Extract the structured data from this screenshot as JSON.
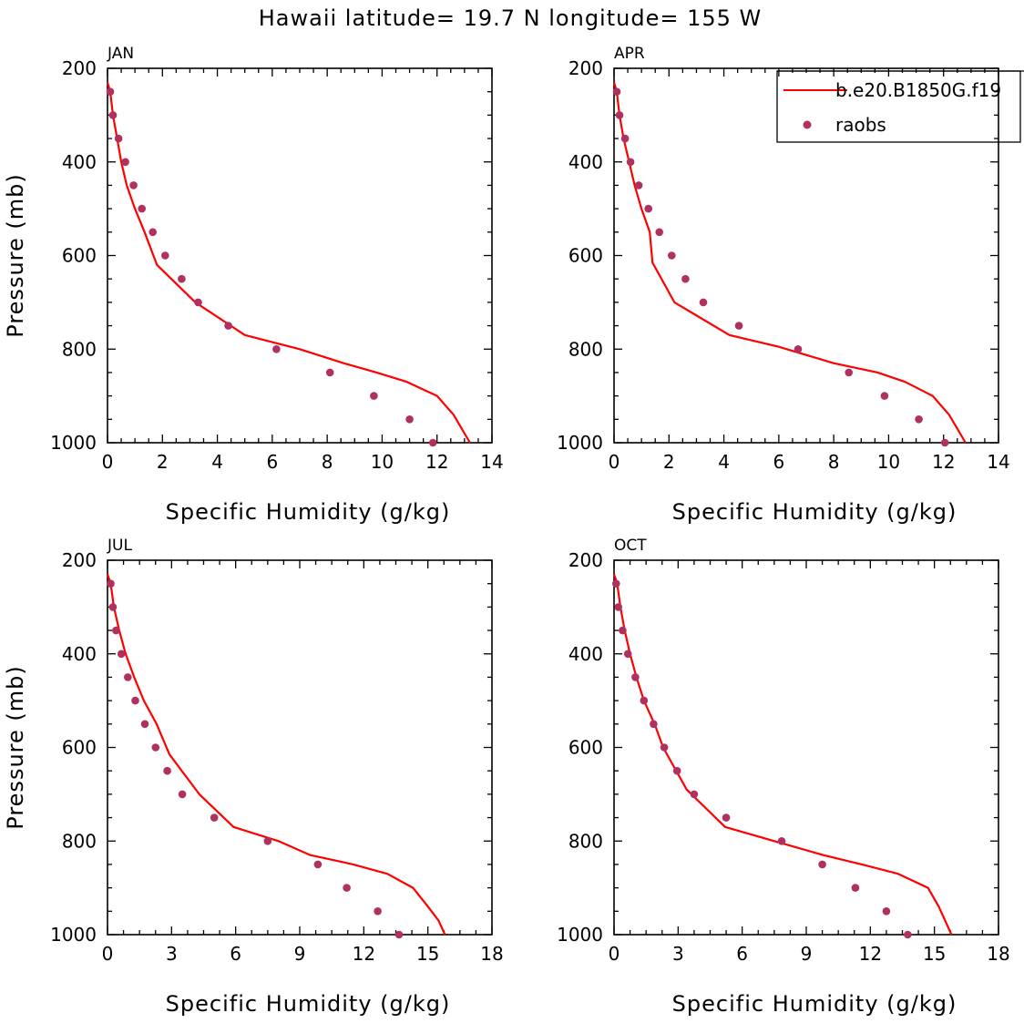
{
  "title": "Hawaii  latitude= 19.7 N longitude= 155 W",
  "legend": {
    "model_label": "b.e20.B1850G.f19",
    "obs_label": "raobs"
  },
  "colors": {
    "model_line": "#ff0000",
    "obs_marker": "#b03060",
    "axes": "#000000"
  },
  "chart_data": [
    {
      "type": "line",
      "panel": "JAN",
      "xlabel": "Specific Humidity (g/kg)",
      "ylabel": "Pressure (mb)",
      "xlim": [
        0,
        14
      ],
      "ylim": [
        1000,
        200
      ],
      "xticks": [
        0,
        2,
        4,
        6,
        8,
        10,
        12,
        14
      ],
      "yticks": [
        200,
        400,
        600,
        800,
        1000
      ],
      "model": {
        "name": "b.e20.B1850G.f19",
        "x": [
          0.0,
          0.1,
          0.2,
          0.35,
          0.5,
          0.7,
          1.0,
          1.35,
          1.8,
          3.2,
          5.0,
          7.0,
          8.6,
          9.8,
          10.9,
          12.0,
          12.6,
          12.9,
          13.2
        ],
        "y": [
          230,
          250,
          300,
          350,
          400,
          450,
          500,
          550,
          620,
          700,
          770,
          800,
          830,
          850,
          870,
          900,
          940,
          970,
          1000
        ]
      },
      "obs": {
        "name": "raobs",
        "x": [
          0.1,
          0.2,
          0.4,
          0.65,
          0.95,
          1.25,
          1.65,
          2.1,
          2.7,
          3.3,
          4.4,
          6.15,
          8.1,
          9.7,
          11.0,
          11.85
        ],
        "y": [
          250,
          300,
          350,
          400,
          450,
          500,
          550,
          600,
          650,
          700,
          750,
          800,
          850,
          900,
          950,
          1000
        ]
      }
    },
    {
      "type": "line",
      "panel": "APR",
      "xlabel": "Specific Humidity (g/kg)",
      "ylabel": "",
      "xlim": [
        0,
        14
      ],
      "ylim": [
        1000,
        200
      ],
      "xticks": [
        0,
        2,
        4,
        6,
        8,
        10,
        12,
        14
      ],
      "yticks": [
        200,
        400,
        600,
        800,
        1000
      ],
      "model": {
        "name": "b.e20.B1850G.f19",
        "x": [
          0.0,
          0.1,
          0.2,
          0.35,
          0.55,
          0.75,
          1.0,
          1.3,
          1.4,
          2.2,
          4.2,
          6.0,
          8.0,
          9.6,
          10.6,
          11.6,
          12.2,
          12.5,
          12.8
        ],
        "y": [
          230,
          250,
          300,
          350,
          400,
          450,
          500,
          550,
          615,
          700,
          770,
          795,
          830,
          850,
          870,
          900,
          940,
          970,
          1000
        ]
      },
      "obs": {
        "name": "raobs",
        "x": [
          0.1,
          0.2,
          0.4,
          0.6,
          0.9,
          1.25,
          1.65,
          2.1,
          2.6,
          3.25,
          4.55,
          6.7,
          8.55,
          9.85,
          11.1,
          12.05
        ],
        "y": [
          250,
          300,
          350,
          400,
          450,
          500,
          550,
          600,
          650,
          700,
          750,
          800,
          850,
          900,
          950,
          1000
        ]
      }
    },
    {
      "type": "line",
      "panel": "JUL",
      "xlabel": "Specific Humidity (g/kg)",
      "ylabel": "Pressure (mb)",
      "xlim": [
        0,
        18
      ],
      "ylim": [
        1000,
        200
      ],
      "xticks": [
        0,
        3,
        6,
        9,
        12,
        15,
        18
      ],
      "yticks": [
        200,
        400,
        600,
        800,
        1000
      ],
      "model": {
        "name": "b.e20.B1850G.f19",
        "x": [
          0.0,
          0.15,
          0.3,
          0.55,
          0.85,
          1.25,
          1.7,
          2.3,
          2.9,
          4.3,
          5.9,
          8.0,
          9.5,
          11.5,
          13.1,
          14.3,
          15.0,
          15.5,
          15.8
        ],
        "y": [
          230,
          250,
          300,
          350,
          400,
          450,
          500,
          550,
          615,
          700,
          770,
          800,
          830,
          850,
          870,
          900,
          940,
          970,
          1000
        ]
      },
      "obs": {
        "name": "raobs",
        "x": [
          0.15,
          0.25,
          0.4,
          0.65,
          0.95,
          1.3,
          1.75,
          2.25,
          2.8,
          3.5,
          5.0,
          7.5,
          9.85,
          11.2,
          12.65,
          13.65
        ],
        "y": [
          250,
          300,
          350,
          400,
          450,
          500,
          550,
          600,
          650,
          700,
          750,
          800,
          850,
          900,
          950,
          1000
        ]
      }
    },
    {
      "type": "line",
      "panel": "OCT",
      "xlabel": "Specific Humidity (g/kg)",
      "ylabel": "",
      "xlim": [
        0,
        18
      ],
      "ylim": [
        1000,
        200
      ],
      "xticks": [
        0,
        3,
        6,
        9,
        12,
        15,
        18
      ],
      "yticks": [
        200,
        400,
        600,
        800,
        1000
      ],
      "model": {
        "name": "b.e20.B1850G.f19",
        "x": [
          0.0,
          0.15,
          0.3,
          0.5,
          0.75,
          1.05,
          1.4,
          1.9,
          2.3,
          3.4,
          5.2,
          7.5,
          9.8,
          11.6,
          13.3,
          14.7,
          15.2,
          15.5,
          15.8
        ],
        "y": [
          230,
          250,
          300,
          350,
          400,
          450,
          500,
          550,
          600,
          690,
          770,
          800,
          830,
          850,
          870,
          900,
          940,
          970,
          1000
        ]
      },
      "obs": {
        "name": "raobs",
        "x": [
          0.1,
          0.2,
          0.4,
          0.65,
          1.0,
          1.4,
          1.85,
          2.35,
          2.95,
          3.75,
          5.25,
          7.85,
          9.75,
          11.3,
          12.75,
          13.75
        ],
        "y": [
          250,
          300,
          350,
          400,
          450,
          500,
          550,
          600,
          650,
          700,
          750,
          800,
          850,
          900,
          950,
          1000
        ]
      }
    }
  ]
}
